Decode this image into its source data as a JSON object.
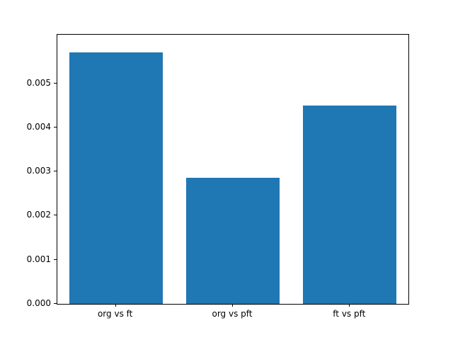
{
  "chart_data": {
    "type": "bar",
    "categories": [
      "org vs ft",
      "org vs pft",
      "ft vs pft"
    ],
    "values": [
      0.0057,
      0.00285,
      0.0045
    ],
    "title": "",
    "xlabel": "",
    "ylabel": "",
    "ylim": [
      0,
      0.0061
    ],
    "yticks": [
      0,
      0.001,
      0.002,
      0.003,
      0.004,
      0.005
    ],
    "ytick_labels": [
      "0.000",
      "0.001",
      "0.002",
      "0.003",
      "0.004",
      "0.005"
    ],
    "bar_color": "#1f77b4",
    "bar_width_fraction": 0.8,
    "grid": false,
    "legend": null
  },
  "figure": {
    "background": "#ffffff"
  }
}
